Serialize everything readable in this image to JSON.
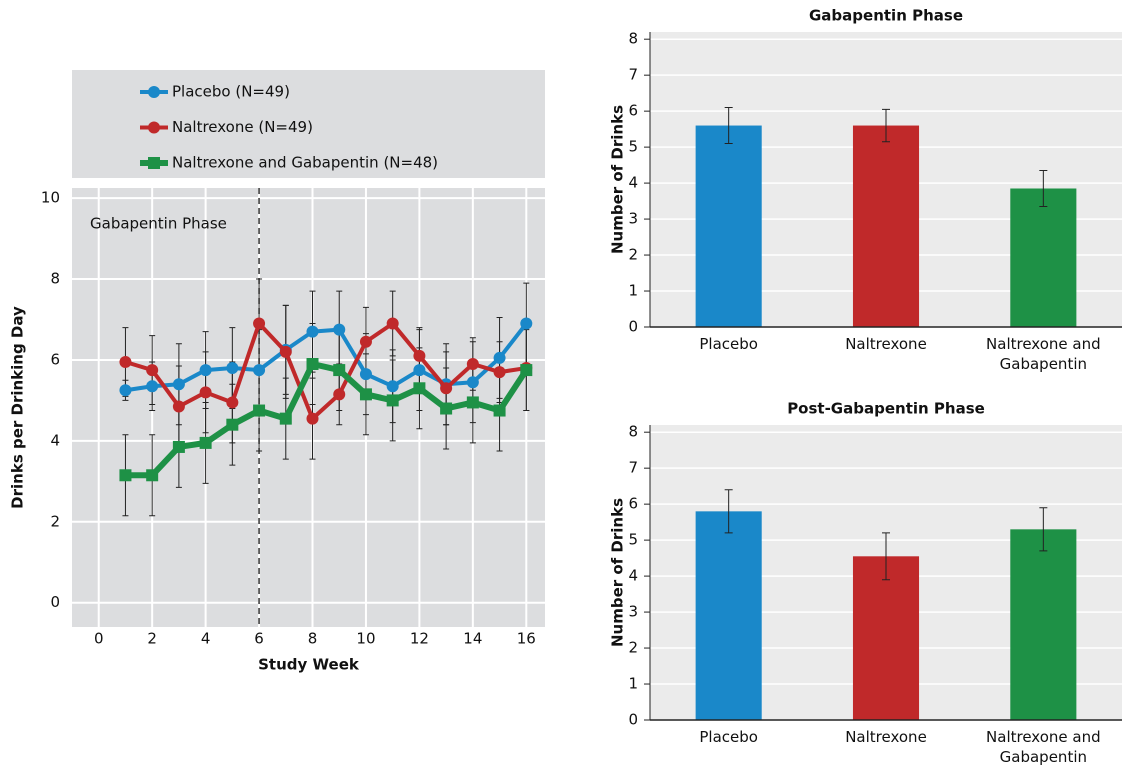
{
  "chart_data": [
    {
      "type": "line",
      "xlabel": "Study Week",
      "ylabel": "Drinks per Drinking Day",
      "annotation": "Gabapentin Phase",
      "vline": 6,
      "x": [
        1,
        2,
        3,
        4,
        5,
        6,
        7,
        8,
        9,
        10,
        11,
        12,
        13,
        14,
        15,
        16
      ],
      "series": [
        {
          "name": "Placebo (N=49)",
          "color": "#1a88c9",
          "marker": "circle",
          "values": [
            5.25,
            5.35,
            5.4,
            5.75,
            5.8,
            5.75,
            6.25,
            6.7,
            6.75,
            5.65,
            5.35,
            5.75,
            5.4,
            5.45,
            6.05,
            6.9
          ],
          "errors": [
            0.25,
            0.6,
            1.0,
            0.95,
            1.0,
            1.0,
            1.1,
            1.0,
            0.95,
            1.0,
            0.9,
            1.0,
            1.0,
            1.0,
            1.0,
            1.0
          ]
        },
        {
          "name": "Naltrexone (N=49)",
          "color": "#c0292a",
          "marker": "circle",
          "values": [
            5.95,
            5.75,
            4.85,
            5.2,
            4.95,
            6.9,
            6.2,
            4.55,
            5.15,
            6.45,
            6.9,
            6.1,
            5.3,
            5.9,
            5.7,
            5.8
          ],
          "errors": [
            0.85,
            0.85,
            1.0,
            1.0,
            1.0,
            1.1,
            1.15,
            1.0,
            0.75,
            0.85,
            0.8,
            0.7,
            0.9,
            0.65,
            0.75,
            1.05
          ]
        },
        {
          "name": "Naltrexone and Gabapentin (N=48)",
          "color": "#1e9146",
          "marker": "square",
          "values": [
            3.15,
            3.15,
            3.85,
            3.95,
            4.4,
            4.75,
            4.55,
            5.9,
            5.75,
            5.15,
            5.0,
            5.3,
            4.8,
            4.95,
            4.75,
            5.75
          ],
          "errors": [
            1.0,
            1.0,
            1.0,
            1.0,
            1.0,
            1.0,
            1.0,
            1.0,
            1.0,
            1.0,
            1.0,
            1.0,
            1.0,
            1.0,
            1.0,
            1.0
          ]
        }
      ],
      "xlim": [
        -1,
        16.7
      ],
      "xticks": [
        0,
        2,
        4,
        6,
        8,
        10,
        12,
        14,
        16
      ],
      "ylim": [
        -0.6,
        10.25
      ],
      "yticks": [
        0,
        2,
        4,
        6,
        8,
        10
      ],
      "grid": true
    },
    {
      "type": "bar",
      "title": "Gabapentin Phase",
      "ylabel": "Number of Drinks",
      "categories": [
        "Placebo",
        "Naltrexone",
        "Naltrexone and Gabapentin"
      ],
      "values": [
        5.6,
        5.6,
        3.85
      ],
      "errors": [
        0.5,
        0.45,
        0.5
      ],
      "colors": [
        "#1a88c9",
        "#c0292a",
        "#1e9146"
      ],
      "ylim": [
        0,
        8.2
      ],
      "yticks": [
        0,
        1,
        2,
        3,
        4,
        5,
        6,
        7,
        8
      ],
      "grid": true
    },
    {
      "type": "bar",
      "title": "Post-Gabapentin Phase",
      "ylabel": "Number of Drinks",
      "categories": [
        "Placebo",
        "Naltrexone",
        "Naltrexone and Gabapentin"
      ],
      "values": [
        5.8,
        4.55,
        5.3
      ],
      "errors": [
        0.6,
        0.65,
        0.6
      ],
      "colors": [
        "#1a88c9",
        "#c0292a",
        "#1e9146"
      ],
      "ylim": [
        0,
        8.2
      ],
      "yticks": [
        0,
        1,
        2,
        3,
        4,
        5,
        6,
        7,
        8
      ],
      "grid": true
    }
  ]
}
